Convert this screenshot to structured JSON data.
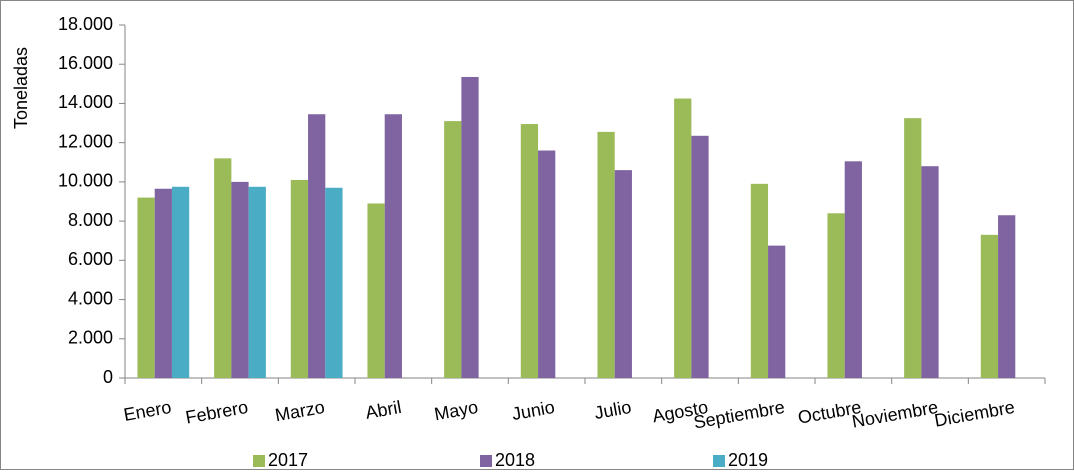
{
  "chart_data": {
    "type": "bar",
    "y_label": "Toneladas",
    "categories": [
      "Enero",
      "Febrero",
      "Marzo",
      "Abril",
      "Mayo",
      "Junio",
      "Julio",
      "Agosto",
      "Septiembre",
      "Octubre",
      "Noviembre",
      "Diciembre"
    ],
    "series": [
      {
        "name": "2017",
        "color": "#9bbb59",
        "values": [
          9200,
          11200,
          10100,
          8900,
          13100,
          12950,
          12550,
          14250,
          9900,
          8400,
          13250,
          7300
        ]
      },
      {
        "name": "2018",
        "color": "#8064a2",
        "values": [
          9650,
          10000,
          13450,
          13450,
          15350,
          11600,
          10600,
          12350,
          6750,
          11050,
          10800,
          8300
        ]
      },
      {
        "name": "2019",
        "color": "#4bacc6",
        "values": [
          9750,
          9750,
          9700,
          null,
          null,
          null,
          null,
          null,
          null,
          null,
          null,
          null
        ]
      }
    ],
    "ylim": [
      0,
      18000
    ],
    "yticks": [
      0,
      {
        "value": 2000,
        "label": "2.000"
      },
      {
        "value": 4000,
        "label": "4.000"
      },
      {
        "value": 6000,
        "label": "6.000"
      },
      {
        "value": 8000,
        "label": "8.000"
      },
      {
        "value": 10000,
        "label": "10.000"
      },
      {
        "value": 12000,
        "label": "12.000"
      },
      {
        "value": 14000,
        "label": "14.000"
      },
      {
        "value": 16000,
        "label": "16.000"
      },
      {
        "value": 18000,
        "label": "18.000"
      }
    ],
    "grid": false,
    "legend": "bottom"
  }
}
